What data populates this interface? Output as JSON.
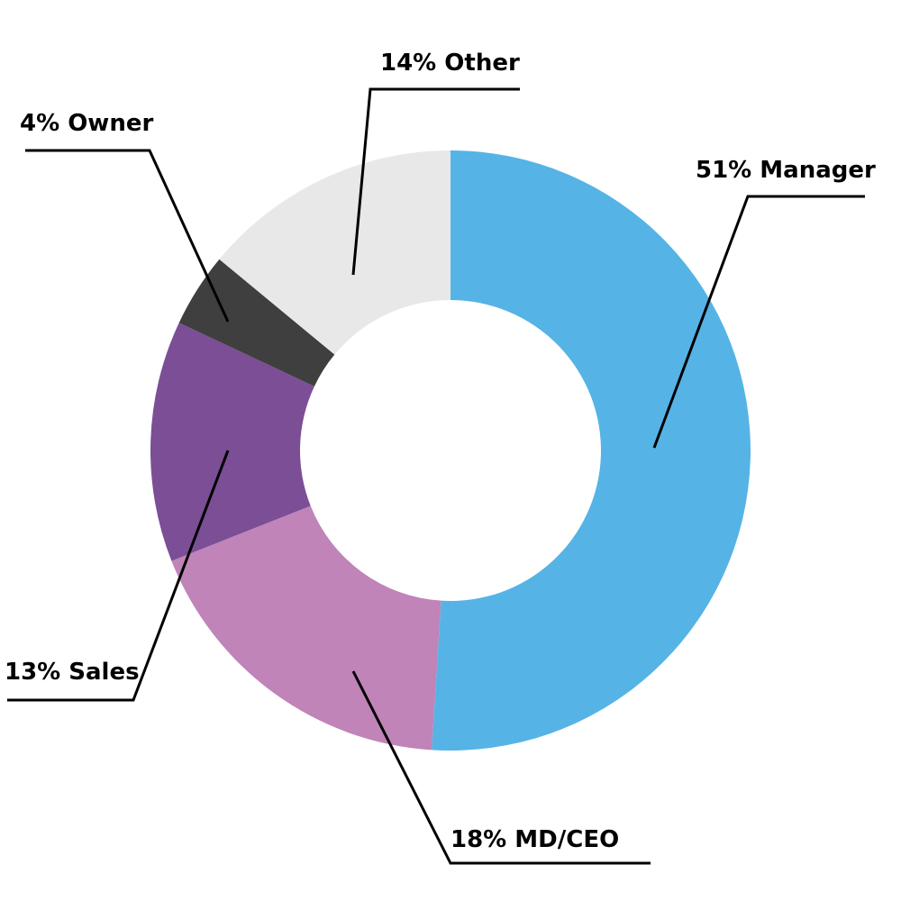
{
  "chart_data": {
    "type": "pie",
    "donut": true,
    "slices": [
      {
        "label": "Manager",
        "value": 51,
        "display": "51% Manager",
        "color": "#56b3e6"
      },
      {
        "label": "MD/CEO",
        "value": 18,
        "display": "18% MD/CEO",
        "color": "#c084b8"
      },
      {
        "label": "Sales",
        "value": 13,
        "display": "13% Sales",
        "color": "#7b4e96"
      },
      {
        "label": "Owner",
        "value": 4,
        "display": "4% Owner",
        "color": "#3f3f3f"
      },
      {
        "label": "Other",
        "value": 14,
        "display": "14% Other",
        "color": "#e8e8e8"
      }
    ],
    "legend": "none",
    "background": "#ffffff"
  }
}
